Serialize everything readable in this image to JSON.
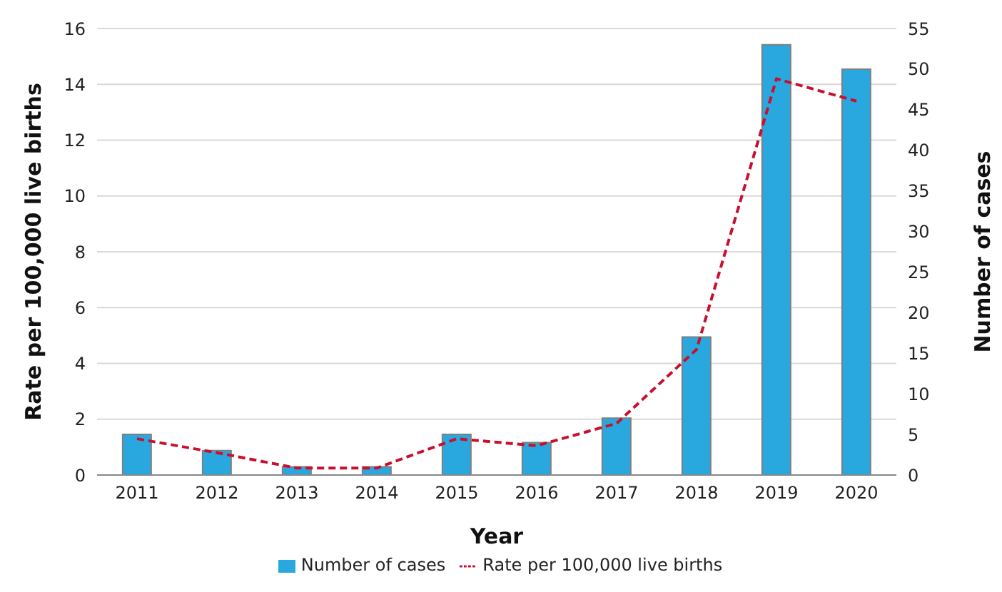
{
  "chart_data": {
    "type": "bar",
    "xlabel": "Year",
    "ylabel": "Rate per 100,000 live births",
    "y2label": "Number of cases",
    "categories": [
      "2011",
      "2012",
      "2013",
      "2014",
      "2015",
      "2016",
      "2017",
      "2018",
      "2019",
      "2020"
    ],
    "series": [
      {
        "name": "Number of cases",
        "axis": "y2",
        "color": "#29a8e0",
        "values": [
          5,
          3,
          1,
          1,
          5,
          4,
          7,
          17,
          53,
          50
        ]
      },
      {
        "name": "Rate per 100,000 live births",
        "type": "line",
        "axis": "y",
        "color": "#c8102e",
        "line_style": "dashed",
        "values": [
          1.3,
          0.8,
          0.25,
          0.25,
          1.3,
          1.05,
          1.85,
          4.5,
          14.2,
          13.4
        ]
      }
    ],
    "ylim": [
      0,
      16
    ],
    "yticks": [
      0,
      2,
      4,
      6,
      8,
      10,
      12,
      14,
      16
    ],
    "y2lim": [
      0,
      55
    ],
    "y2ticks": [
      0,
      5,
      10,
      15,
      20,
      25,
      30,
      35,
      40,
      45,
      50,
      55
    ],
    "grid": "y",
    "legend": "bottom",
    "marker": "none"
  }
}
